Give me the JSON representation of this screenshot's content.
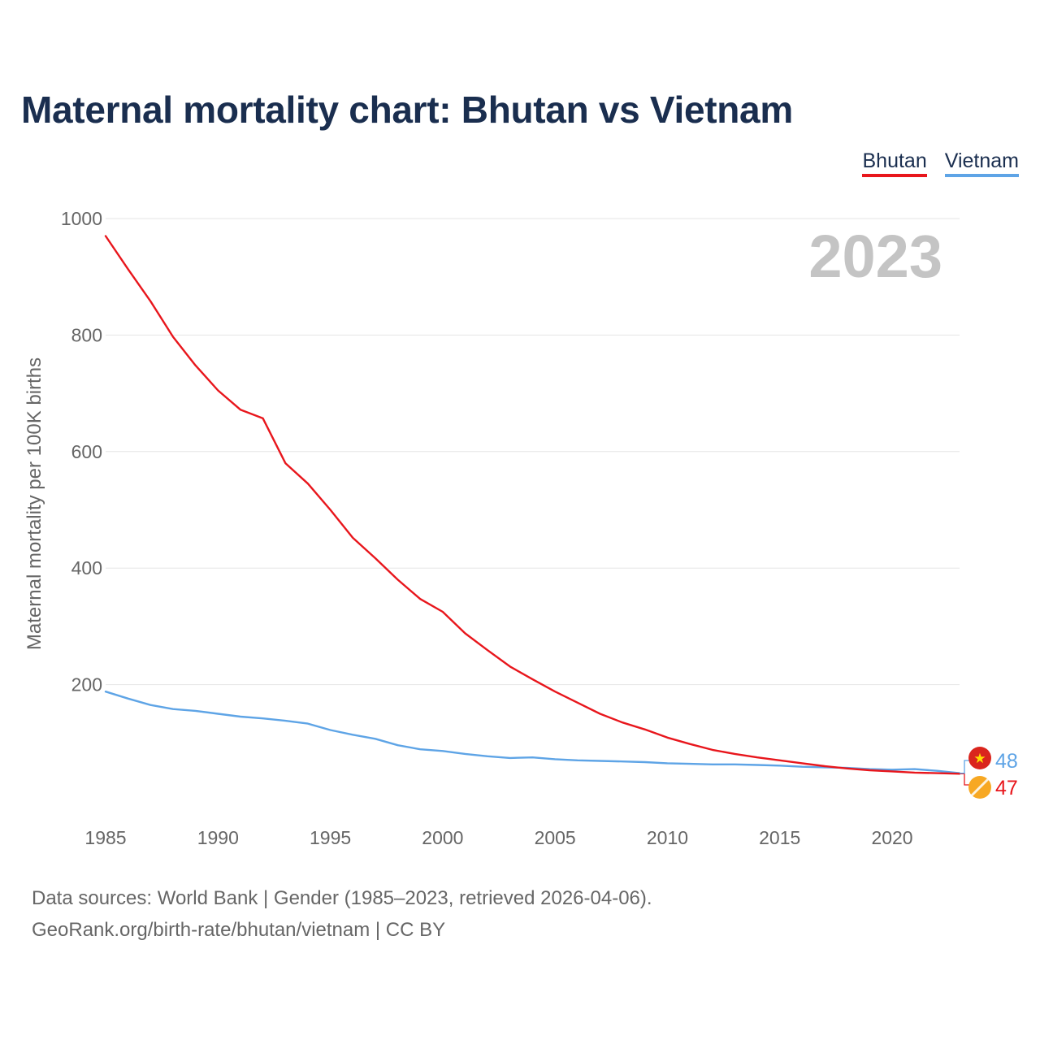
{
  "page": {
    "title": "Maternal mortality chart: Bhutan vs Vietnam",
    "year_watermark": "2023",
    "footer_line1": "Data sources: World Bank | Gender (1985–2023, retrieved 2026-04-06).",
    "footer_line2": "GeoRank.org/birth-rate/bhutan/vietnam | CC BY"
  },
  "legend": [
    {
      "label": "Bhutan",
      "color": "#e8161c"
    },
    {
      "label": "Vietnam",
      "color": "#5ea4e6"
    }
  ],
  "chart_data": {
    "type": "line",
    "title": "Maternal mortality chart: Bhutan vs Vietnam",
    "xlabel": "",
    "ylabel": "Maternal mortality per 100K births",
    "xlim": [
      1985,
      2023
    ],
    "ylim": [
      0,
      1000
    ],
    "x_ticks": [
      1985,
      1990,
      1995,
      2000,
      2005,
      2010,
      2015,
      2020
    ],
    "y_ticks": [
      200,
      400,
      600,
      800,
      1000
    ],
    "grid": true,
    "legend_position": "top-right",
    "x": [
      1985,
      1986,
      1987,
      1988,
      1989,
      1990,
      1991,
      1992,
      1993,
      1994,
      1995,
      1996,
      1997,
      1998,
      1999,
      2000,
      2001,
      2002,
      2003,
      2004,
      2005,
      2006,
      2007,
      2008,
      2009,
      2010,
      2011,
      2012,
      2013,
      2014,
      2015,
      2016,
      2017,
      2018,
      2019,
      2020,
      2021,
      2022,
      2023
    ],
    "series": [
      {
        "name": "Bhutan",
        "color": "#e8161c",
        "flag_color": "#f7a823",
        "end_label": "47",
        "values": [
          970,
          913,
          858,
          797,
          748,
          705,
          672,
          657,
          580,
          545,
          500,
          452,
          417,
          380,
          347,
          325,
          288,
          259,
          231,
          209,
          188,
          169,
          150,
          135,
          123,
          109,
          98,
          88,
          81,
          75,
          70,
          65,
          60,
          56,
          53,
          51,
          49,
          48,
          47
        ]
      },
      {
        "name": "Vietnam",
        "color": "#5ea4e6",
        "flag_color": "#da251d",
        "end_label": "48",
        "values": [
          188,
          176,
          165,
          158,
          155,
          150,
          145,
          142,
          138,
          133,
          122,
          114,
          107,
          96,
          89,
          86,
          81,
          77,
          74,
          75,
          72,
          70,
          69,
          68,
          67,
          65,
          64,
          63,
          63,
          62,
          61,
          59,
          58,
          57,
          55,
          54,
          55,
          52,
          48
        ]
      }
    ]
  }
}
